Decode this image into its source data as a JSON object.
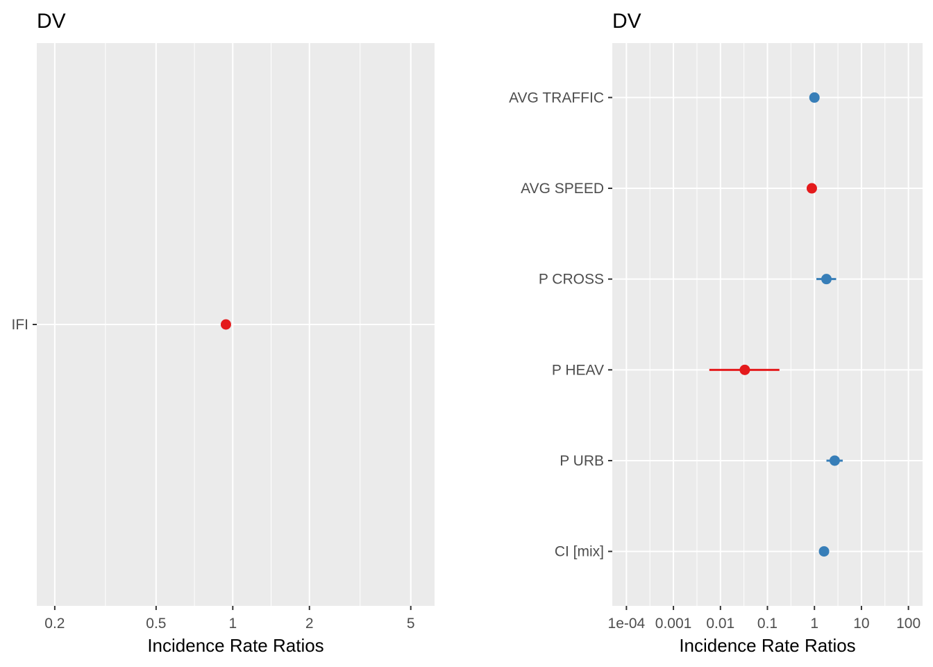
{
  "chart_data": [
    {
      "type": "scatter",
      "title": "DV",
      "xlabel": "Incidence Rate Ratios",
      "ylabel": "",
      "x_scale": "log",
      "xlim": [
        0.17,
        6.2
      ],
      "x_ticks": [
        0.2,
        0.5,
        1,
        2,
        5
      ],
      "x_tick_labels": [
        "0.2",
        "0.5",
        "1",
        "2",
        "5"
      ],
      "categories": [
        "IFI"
      ],
      "points": [
        {
          "term": "IFI",
          "estimate": 0.94,
          "conf_low": 0.94,
          "conf_high": 0.94,
          "color": "#e41a1c"
        }
      ],
      "grid": true
    },
    {
      "type": "scatter",
      "title": "DV",
      "xlabel": "Incidence Rate Ratios",
      "ylabel": "",
      "x_scale": "log",
      "xlim": [
        5e-05,
        200
      ],
      "x_ticks": [
        0.0001,
        0.001,
        0.01,
        0.1,
        1,
        10,
        100
      ],
      "x_tick_labels": [
        "1e-04",
        "0.001",
        "0.01",
        "0.1",
        "1",
        "10",
        "100"
      ],
      "categories": [
        "AVG TRAFFIC",
        "AVG SPEED",
        "P CROSS",
        "P HEAV",
        "P URB",
        "CI [mix]"
      ],
      "points": [
        {
          "term": "AVG TRAFFIC",
          "estimate": 1.0,
          "conf_low": 1.0,
          "conf_high": 1.0,
          "color": "#377eb8"
        },
        {
          "term": "AVG SPEED",
          "estimate": 0.88,
          "conf_low": 0.88,
          "conf_high": 0.88,
          "color": "#e41a1c"
        },
        {
          "term": "P CROSS",
          "estimate": 1.8,
          "conf_low": 1.1,
          "conf_high": 2.9,
          "color": "#377eb8"
        },
        {
          "term": "P HEAV",
          "estimate": 0.033,
          "conf_low": 0.0058,
          "conf_high": 0.18,
          "color": "#e41a1c"
        },
        {
          "term": "P URB",
          "estimate": 2.7,
          "conf_low": 1.8,
          "conf_high": 4.0,
          "color": "#377eb8"
        },
        {
          "term": "CI [mix]",
          "estimate": 1.6,
          "conf_low": 1.6,
          "conf_high": 1.6,
          "color": "#377eb8"
        }
      ],
      "grid": true
    }
  ]
}
